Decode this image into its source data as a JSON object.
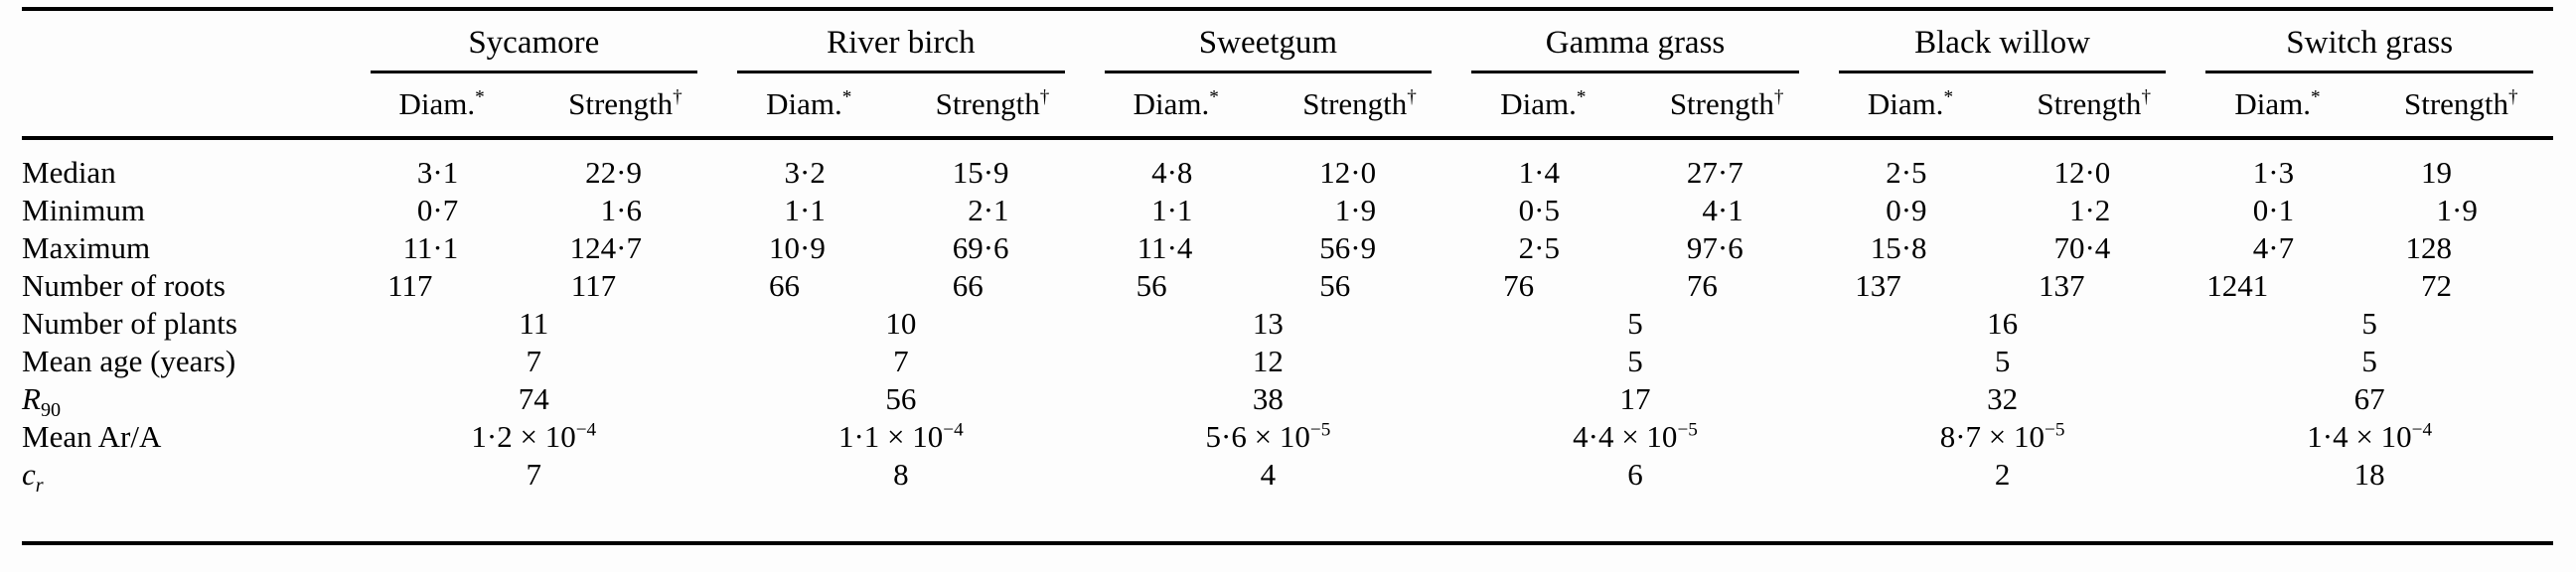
{
  "table": {
    "diam_label": "Diam.",
    "diam_marker": "*",
    "strength_label": "Strength",
    "strength_marker": "†",
    "decimal_separator": "·",
    "text_color": "#000000",
    "background_color": "#fdfdfd",
    "groups": [
      {
        "name": "Sycamore"
      },
      {
        "name": "River birch"
      },
      {
        "name": "Sweetgum"
      },
      {
        "name": "Gamma grass"
      },
      {
        "name": "Black willow"
      },
      {
        "name": "Switch grass"
      }
    ],
    "rows": [
      {
        "label": {
          "text": "Median"
        },
        "type": "pair",
        "cells": [
          [
            "3",
            "·1",
            "22",
            "·9"
          ],
          [
            "3",
            "·2",
            "15",
            "·9"
          ],
          [
            "4",
            "·8",
            "12",
            "·0"
          ],
          [
            "1",
            "·4",
            "27",
            "·7"
          ],
          [
            "2",
            "·5",
            "12",
            "·0"
          ],
          [
            "1",
            "·3",
            "19",
            ""
          ]
        ]
      },
      {
        "label": {
          "text": "Minimum"
        },
        "type": "pair",
        "cells": [
          [
            "0",
            "·7",
            "1",
            "·6"
          ],
          [
            "1",
            "·1",
            "2",
            "·1"
          ],
          [
            "1",
            "·1",
            "1",
            "·9"
          ],
          [
            "0",
            "·5",
            "4",
            "·1"
          ],
          [
            "0",
            "·9",
            "1",
            "·2"
          ],
          [
            "0",
            "·1",
            "1",
            "·9"
          ]
        ]
      },
      {
        "label": {
          "text": "Maximum"
        },
        "type": "pair",
        "cells": [
          [
            "11",
            "·1",
            "124",
            "·7"
          ],
          [
            "10",
            "·9",
            "69",
            "·6"
          ],
          [
            "11",
            "·4",
            "56",
            "·9"
          ],
          [
            "2",
            "·5",
            "97",
            "·6"
          ],
          [
            "15",
            "·8",
            "70",
            "·4"
          ],
          [
            "4",
            "·7",
            "128",
            ""
          ]
        ]
      },
      {
        "label": {
          "text": "Number of roots"
        },
        "type": "pair",
        "cells": [
          [
            "117",
            "",
            "117",
            ""
          ],
          [
            "66",
            "",
            "66",
            ""
          ],
          [
            "56",
            "",
            "56",
            ""
          ],
          [
            "76",
            "",
            "76",
            ""
          ],
          [
            "137",
            "",
            "137",
            ""
          ],
          [
            "1241",
            "",
            "72",
            ""
          ]
        ]
      },
      {
        "label": {
          "text": "Number of plants"
        },
        "type": "span",
        "cells": [
          "11",
          "10",
          "13",
          "5",
          "16",
          "5"
        ]
      },
      {
        "label": {
          "text": "Mean age (years)"
        },
        "type": "span",
        "cells": [
          "7",
          "7",
          "12",
          "5",
          "5",
          "5"
        ]
      },
      {
        "label": {
          "italic": "R",
          "sub": "90",
          "subItalic": false
        },
        "type": "span",
        "cells": [
          "74",
          "56",
          "38",
          "17",
          "32",
          "67"
        ]
      },
      {
        "label": {
          "text": "Mean Ar/A"
        },
        "type": "span_exp",
        "cells": [
          [
            "1·2 × 10",
            "−4"
          ],
          [
            "1·1 × 10",
            "−4"
          ],
          [
            "5·6 × 10",
            "−5"
          ],
          [
            "4·4 × 10",
            "−5"
          ],
          [
            "8·7 × 10",
            "−5"
          ],
          [
            "1·4 × 10",
            "−4"
          ]
        ]
      },
      {
        "label": {
          "italic": "c",
          "sub": "r",
          "subItalic": true
        },
        "type": "span",
        "cells": [
          "7",
          "8",
          "4",
          "6",
          "2",
          "18"
        ]
      }
    ]
  }
}
